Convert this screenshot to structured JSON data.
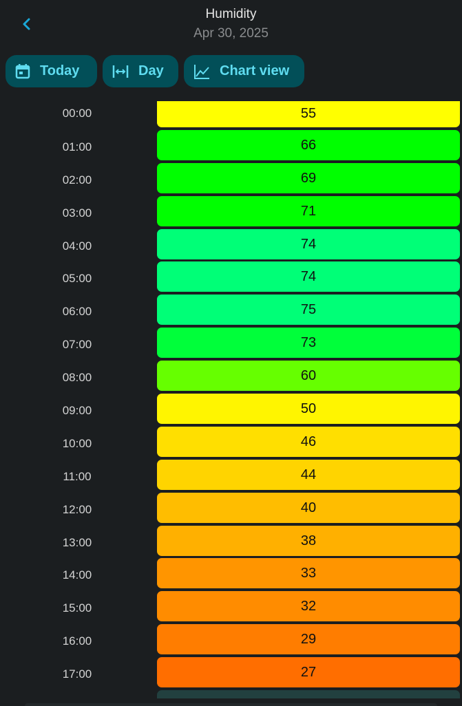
{
  "header": {
    "title": "Humidity",
    "subtitle": "Apr 30, 2025",
    "back_icon": "chevron-left-icon"
  },
  "toolbar": {
    "today": {
      "label": "Today",
      "icon": "calendar-icon"
    },
    "day": {
      "label": "Day",
      "icon": "arrow-expand-horizontal-icon"
    },
    "chart": {
      "label": "Chart view",
      "icon": "line-chart-icon"
    }
  },
  "colors": {
    "accent": "#5fdcf0",
    "button_bg": "#024f58",
    "background": "#1b1e20"
  },
  "rows": [
    {
      "time": "00:00",
      "value": "55",
      "color": "#ffff00"
    },
    {
      "time": "01:00",
      "value": "66",
      "color": "#00ff00"
    },
    {
      "time": "02:00",
      "value": "69",
      "color": "#00ff00"
    },
    {
      "time": "03:00",
      "value": "71",
      "color": "#00ff00"
    },
    {
      "time": "04:00",
      "value": "74",
      "color": "#00ff77"
    },
    {
      "time": "05:00",
      "value": "74",
      "color": "#00ff77"
    },
    {
      "time": "06:00",
      "value": "75",
      "color": "#00ff77"
    },
    {
      "time": "07:00",
      "value": "73",
      "color": "#00ff3a"
    },
    {
      "time": "08:00",
      "value": "60",
      "color": "#66ff00"
    },
    {
      "time": "09:00",
      "value": "50",
      "color": "#fff500"
    },
    {
      "time": "10:00",
      "value": "46",
      "color": "#ffdf00"
    },
    {
      "time": "11:00",
      "value": "44",
      "color": "#ffd400"
    },
    {
      "time": "12:00",
      "value": "40",
      "color": "#ffbd00"
    },
    {
      "time": "13:00",
      "value": "38",
      "color": "#ffb000"
    },
    {
      "time": "14:00",
      "value": "33",
      "color": "#ff9500"
    },
    {
      "time": "15:00",
      "value": "32",
      "color": "#ff8c00"
    },
    {
      "time": "16:00",
      "value": "29",
      "color": "#ff7d00"
    },
    {
      "time": "17:00",
      "value": "27",
      "color": "#ff6e00"
    }
  ]
}
